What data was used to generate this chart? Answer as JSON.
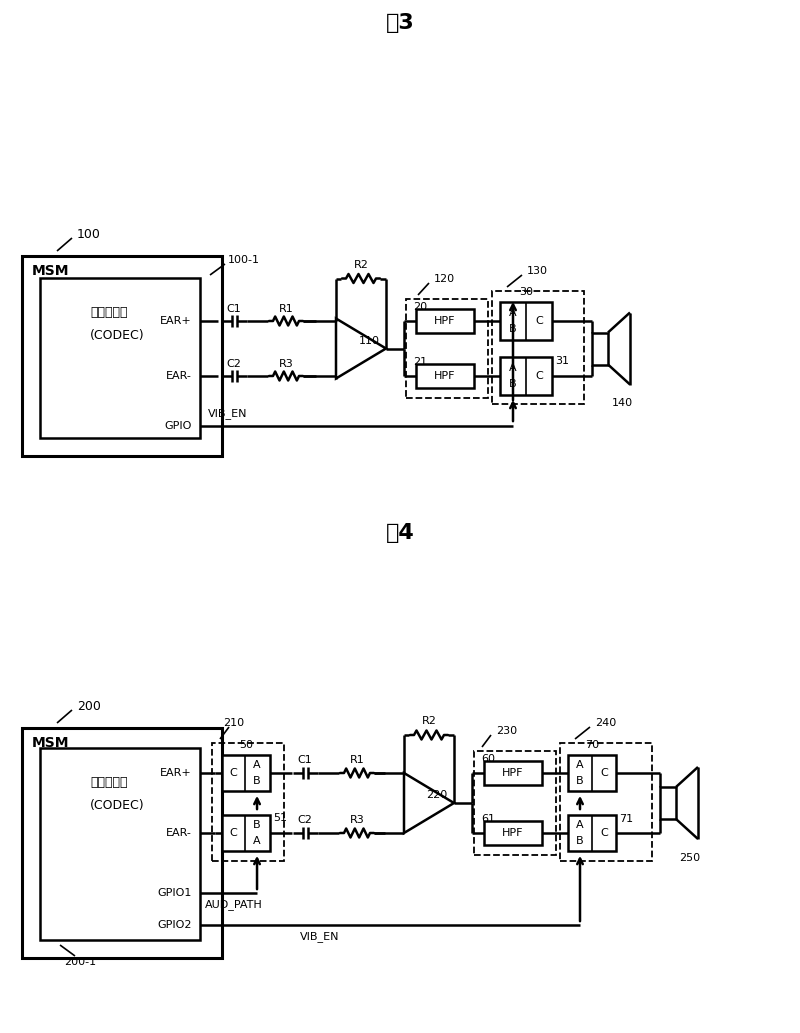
{
  "title3": "图3",
  "title4": "图4",
  "fig3": {
    "msm_label": "MSM",
    "codec_line1": "音频处理器",
    "codec_line2": "(CODEC)",
    "ref100": "100",
    "ref100_1": "100-1",
    "ear_plus": "EAR+",
    "ear_minus": "EAR-",
    "gpio": "GPIO",
    "c1": "C1",
    "r1": "R1",
    "c2": "C2",
    "r3": "R3",
    "r2": "R2",
    "ref110": "110",
    "ref120": "120",
    "ref130": "130",
    "ref20": "20",
    "ref21": "21",
    "ref30": "30",
    "ref31": "31",
    "vib_en": "VIB_EN",
    "ref140": "140",
    "hpf": "HPF"
  },
  "fig4": {
    "msm_label": "MSM",
    "codec_line1": "音频处理器",
    "codec_line2": "(CODEC)",
    "ref200": "200",
    "ref200_1": "200-1",
    "ear_plus": "EAR+",
    "ear_minus": "EAR-",
    "gpio1": "GPIO1",
    "gpio2": "GPIO2",
    "c1": "C1",
    "r1": "R1",
    "c2": "C2",
    "r3": "R3",
    "r2": "R2",
    "ref220": "220",
    "ref210": "210",
    "ref230": "230",
    "ref240": "240",
    "ref50": "50",
    "ref51": "51",
    "ref60": "60",
    "ref61": "61",
    "ref70": "70",
    "ref71": "71",
    "aud_path": "AUD_PATH",
    "vib_en": "VIB_EN",
    "ref250": "250",
    "hpf": "HPF"
  }
}
